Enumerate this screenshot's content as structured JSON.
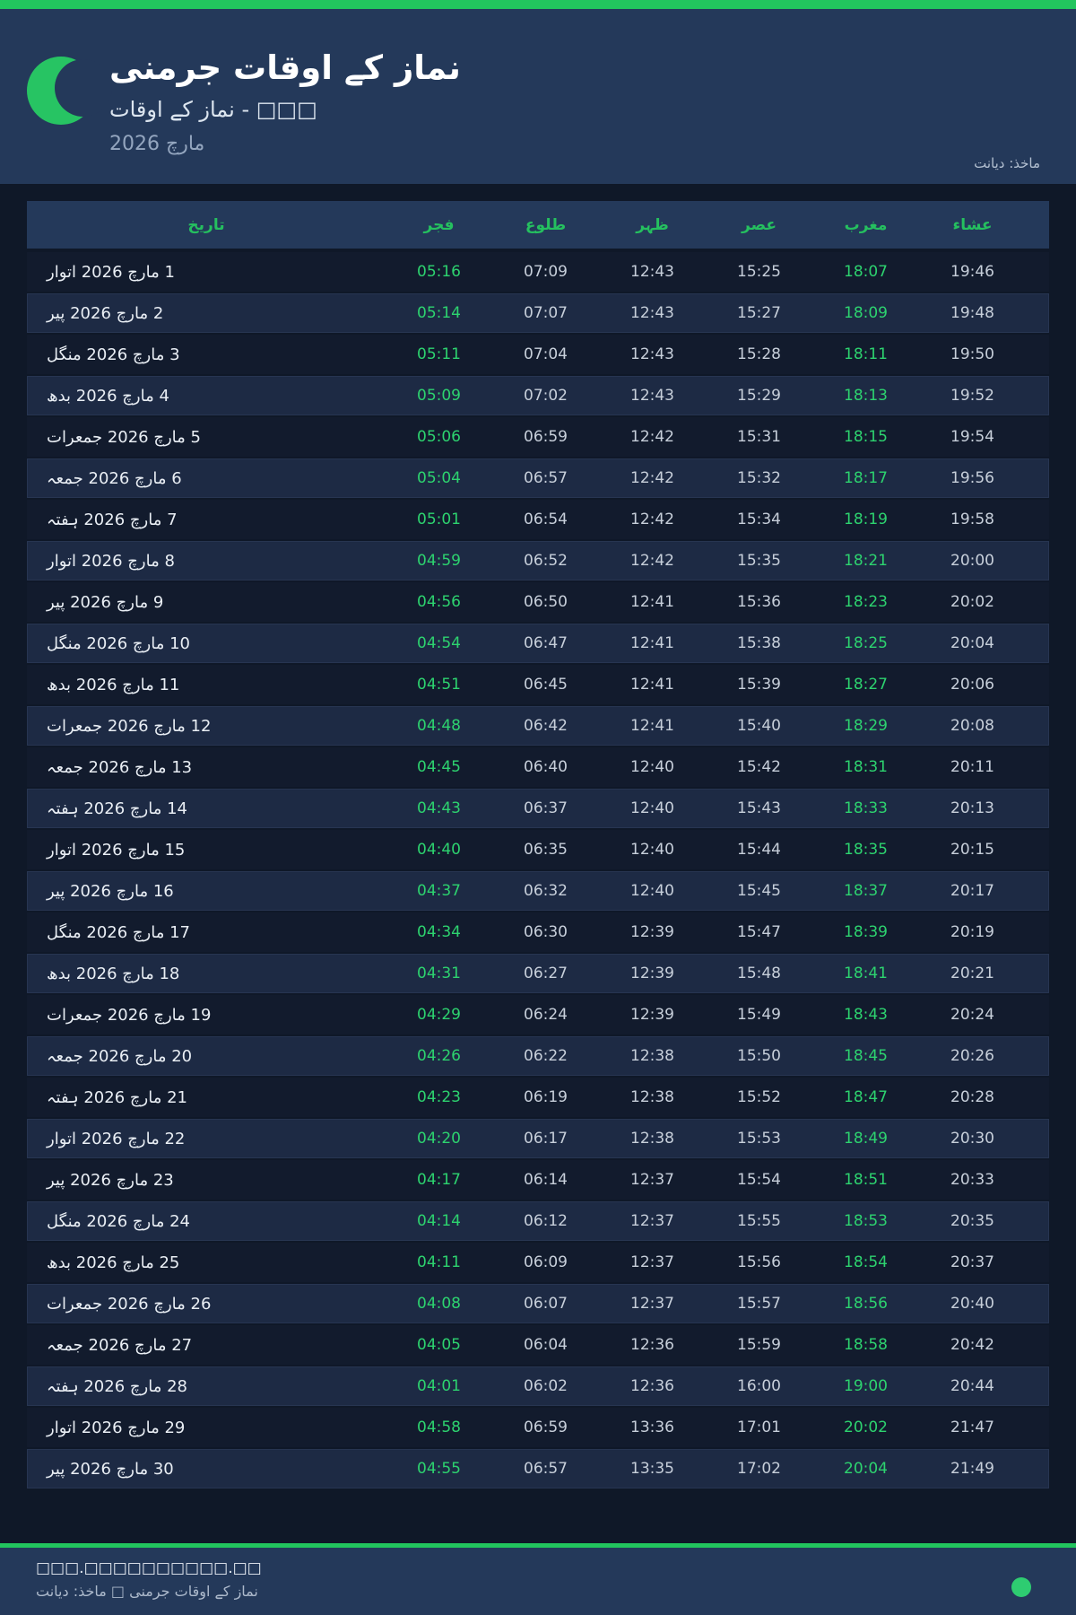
{
  "header": {
    "title": "نماز کے اوقات جرمنی",
    "subtitle": "□□□ - نماز کے اوقات",
    "month_year": "مارچ 2026",
    "source": "ماخذ: دیانت"
  },
  "table": {
    "columns": [
      "تاریخ",
      "فجر",
      "طلوع",
      "ظہر",
      "عصر",
      "مغرب",
      "عشاء"
    ],
    "rows": [
      [
        "1 مارچ 2026 اتوار",
        "05:16",
        "07:09",
        "12:43",
        "15:25",
        "18:07",
        "19:46"
      ],
      [
        "2 مارچ 2026 پیر",
        "05:14",
        "07:07",
        "12:43",
        "15:27",
        "18:09",
        "19:48"
      ],
      [
        "3 مارچ 2026 منگل",
        "05:11",
        "07:04",
        "12:43",
        "15:28",
        "18:11",
        "19:50"
      ],
      [
        "4 مارچ 2026 بدھ",
        "05:09",
        "07:02",
        "12:43",
        "15:29",
        "18:13",
        "19:52"
      ],
      [
        "5 مارچ 2026 جمعرات",
        "05:06",
        "06:59",
        "12:42",
        "15:31",
        "18:15",
        "19:54"
      ],
      [
        "6 مارچ 2026 جمعہ",
        "05:04",
        "06:57",
        "12:42",
        "15:32",
        "18:17",
        "19:56"
      ],
      [
        "7 مارچ 2026 ہفتہ",
        "05:01",
        "06:54",
        "12:42",
        "15:34",
        "18:19",
        "19:58"
      ],
      [
        "8 مارچ 2026 اتوار",
        "04:59",
        "06:52",
        "12:42",
        "15:35",
        "18:21",
        "20:00"
      ],
      [
        "9 مارچ 2026 پیر",
        "04:56",
        "06:50",
        "12:41",
        "15:36",
        "18:23",
        "20:02"
      ],
      [
        "10 مارچ 2026 منگل",
        "04:54",
        "06:47",
        "12:41",
        "15:38",
        "18:25",
        "20:04"
      ],
      [
        "11 مارچ 2026 بدھ",
        "04:51",
        "06:45",
        "12:41",
        "15:39",
        "18:27",
        "20:06"
      ],
      [
        "12 مارچ 2026 جمعرات",
        "04:48",
        "06:42",
        "12:41",
        "15:40",
        "18:29",
        "20:08"
      ],
      [
        "13 مارچ 2026 جمعہ",
        "04:45",
        "06:40",
        "12:40",
        "15:42",
        "18:31",
        "20:11"
      ],
      [
        "14 مارچ 2026 ہفتہ",
        "04:43",
        "06:37",
        "12:40",
        "15:43",
        "18:33",
        "20:13"
      ],
      [
        "15 مارچ 2026 اتوار",
        "04:40",
        "06:35",
        "12:40",
        "15:44",
        "18:35",
        "20:15"
      ],
      [
        "16 مارچ 2026 پیر",
        "04:37",
        "06:32",
        "12:40",
        "15:45",
        "18:37",
        "20:17"
      ],
      [
        "17 مارچ 2026 منگل",
        "04:34",
        "06:30",
        "12:39",
        "15:47",
        "18:39",
        "20:19"
      ],
      [
        "18 مارچ 2026 بدھ",
        "04:31",
        "06:27",
        "12:39",
        "15:48",
        "18:41",
        "20:21"
      ],
      [
        "19 مارچ 2026 جمعرات",
        "04:29",
        "06:24",
        "12:39",
        "15:49",
        "18:43",
        "20:24"
      ],
      [
        "20 مارچ 2026 جمعہ",
        "04:26",
        "06:22",
        "12:38",
        "15:50",
        "18:45",
        "20:26"
      ],
      [
        "21 مارچ 2026 ہفتہ",
        "04:23",
        "06:19",
        "12:38",
        "15:52",
        "18:47",
        "20:28"
      ],
      [
        "22 مارچ 2026 اتوار",
        "04:20",
        "06:17",
        "12:38",
        "15:53",
        "18:49",
        "20:30"
      ],
      [
        "23 مارچ 2026 پیر",
        "04:17",
        "06:14",
        "12:37",
        "15:54",
        "18:51",
        "20:33"
      ],
      [
        "24 مارچ 2026 منگل",
        "04:14",
        "06:12",
        "12:37",
        "15:55",
        "18:53",
        "20:35"
      ],
      [
        "25 مارچ 2026 بدھ",
        "04:11",
        "06:09",
        "12:37",
        "15:56",
        "18:54",
        "20:37"
      ],
      [
        "26 مارچ 2026 جمعرات",
        "04:08",
        "06:07",
        "12:37",
        "15:57",
        "18:56",
        "20:40"
      ],
      [
        "27 مارچ 2026 جمعہ",
        "04:05",
        "06:04",
        "12:36",
        "15:59",
        "18:58",
        "20:42"
      ],
      [
        "28 مارچ 2026 ہفتہ",
        "04:01",
        "06:02",
        "12:36",
        "16:00",
        "19:00",
        "20:44"
      ],
      [
        "29 مارچ 2026 اتوار",
        "04:58",
        "06:59",
        "13:36",
        "17:01",
        "20:02",
        "21:47"
      ],
      [
        "30 مارچ 2026 پیر",
        "04:55",
        "06:57",
        "13:35",
        "17:02",
        "20:04",
        "21:49"
      ]
    ],
    "highlighted_columns": [
      "فجر",
      "مغرب"
    ]
  },
  "footer": {
    "line1": "□□□.□□□□□□□□□□.□□",
    "line2": "نماز کے اوقات جرمنی □ ماخذ: دیانت"
  },
  "icons": {
    "crescent": "crescent-moon-icon",
    "dot": "green-dot"
  },
  "colors": {
    "accent_green": "#22c55e",
    "time_green": "#2dd36f",
    "hero_bg": "#24395a",
    "page_bg": "#0f1828",
    "row_dark": "#121b2d",
    "row_light": "#1d2a44",
    "text_white": "#e9eef4",
    "text_gray": "#c7cfda"
  }
}
